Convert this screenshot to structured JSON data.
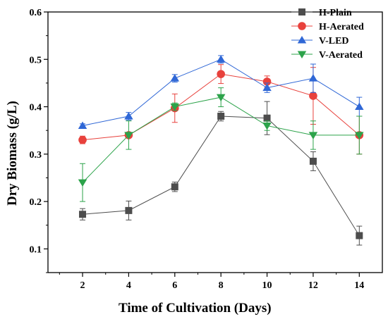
{
  "chart_data": {
    "type": "line",
    "xlabel": "Time of Cultivation (Days)",
    "ylabel": "Dry Biomass (g/L)",
    "x": [
      2,
      4,
      6,
      8,
      10,
      12,
      14
    ],
    "xlim": [
      0.5,
      15
    ],
    "ylim": [
      0.05,
      0.6
    ],
    "xticks": [
      2,
      4,
      6,
      8,
      10,
      12,
      14
    ],
    "yticks": [
      0.1,
      0.2,
      0.3,
      0.4,
      0.5,
      0.6
    ],
    "grid": false,
    "legend_position": "top-right",
    "series": [
      {
        "name": "H-Plain",
        "color": "#4d4d4d",
        "marker": "square",
        "values": [
          0.173,
          0.181,
          0.231,
          0.38,
          0.376,
          0.285,
          0.128
        ],
        "error": [
          0.012,
          0.02,
          0.01,
          0.01,
          0.035,
          0.02,
          0.02
        ]
      },
      {
        "name": "H-Aerated",
        "color": "#e8413c",
        "marker": "circle",
        "values": [
          0.33,
          0.34,
          0.397,
          0.469,
          0.453,
          0.423,
          0.34
        ],
        "error": [
          0.008,
          0.005,
          0.03,
          0.02,
          0.012,
          0.06,
          0.04
        ]
      },
      {
        "name": "V-LED",
        "color": "#2f67d6",
        "marker": "triangle-up",
        "values": [
          0.36,
          0.38,
          0.46,
          0.5,
          0.44,
          0.46,
          0.4
        ],
        "error": [
          0.004,
          0.008,
          0.008,
          0.008,
          0.01,
          0.03,
          0.02
        ]
      },
      {
        "name": "V-Aerated",
        "color": "#2ca34a",
        "marker": "triangle-down",
        "values": [
          0.24,
          0.34,
          0.4,
          0.42,
          0.36,
          0.34,
          0.34
        ],
        "error": [
          0.04,
          0.03,
          0.008,
          0.02,
          0.01,
          0.03,
          0.04
        ]
      }
    ]
  }
}
